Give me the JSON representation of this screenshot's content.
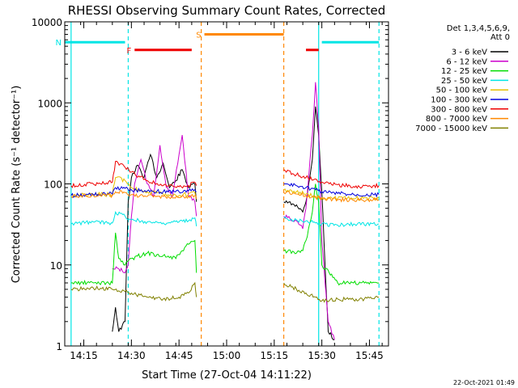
{
  "chart_data": {
    "type": "line",
    "title": "RHESSI Observing Summary Count Rates, Corrected",
    "xlabel": "Start Time (27-Oct-04 14:11:22)",
    "ylabel": "Corrected Count Rate (s⁻¹ detector⁻¹)",
    "ylog": true,
    "ylim": [
      1,
      10000
    ],
    "xlim": [
      "14:09",
      "15:51"
    ],
    "x_ticks": [
      "14:15",
      "14:30",
      "14:45",
      "15:00",
      "15:15",
      "15:30",
      "15:45"
    ],
    "y_ticks": [
      "1",
      "10",
      "100",
      "1000",
      "10000"
    ],
    "legend": {
      "placement": "right",
      "header": [
        "Det 1,3,4,5,6,9,",
        "Att 0"
      ],
      "entries": [
        {
          "label": "3 - 6 keV",
          "color": "#000000"
        },
        {
          "label": "6 - 12 keV",
          "color": "#cc00cc"
        },
        {
          "label": "12 - 25 keV",
          "color": "#00dd00"
        },
        {
          "label": "25 - 50 keV",
          "color": "#00e5e5"
        },
        {
          "label": "50 - 100 keV",
          "color": "#e6c000"
        },
        {
          "label": "100 - 300 keV",
          "color": "#0000dd"
        },
        {
          "label": "300 - 800 keV",
          "color": "#ee0000"
        },
        {
          "label": "800 - 7000 keV",
          "color": "#ff8800"
        },
        {
          "label": "7000 - 15000 keV",
          "color": "#808000"
        }
      ]
    },
    "markers": [
      {
        "label": "N",
        "color": "#00e5e5",
        "bar": [
          "14:09",
          "14:28"
        ],
        "bar_y": 5600,
        "bar2": [
          "15:30",
          "15:48"
        ],
        "lines": [
          "14:11",
          "14:29",
          "15:29",
          "15:48"
        ]
      },
      {
        "label": "F",
        "color": "#ee0000",
        "bar": [
          "14:31",
          "14:49"
        ],
        "bar_y": 4500,
        "bar2": [
          "15:25",
          "15:29"
        ]
      },
      {
        "label": "S",
        "color": "#ff8800",
        "bar": [
          "14:53",
          "15:18"
        ],
        "bar_y": 7000,
        "lines": [
          "14:52",
          "15:18"
        ]
      }
    ],
    "series": [
      {
        "name": "3 - 6 keV",
        "color": "#000000",
        "points": [
          [
            "14:24",
            1.5
          ],
          [
            "14:25",
            3
          ],
          [
            "14:26",
            1.5
          ],
          [
            "14:28",
            2
          ],
          [
            "14:29",
            60
          ],
          [
            "14:30",
            120
          ],
          [
            "14:32",
            170
          ],
          [
            "14:34",
            120
          ],
          [
            "14:36",
            230
          ],
          [
            "14:38",
            120
          ],
          [
            "14:40",
            180
          ],
          [
            "14:42",
            90
          ],
          [
            "14:44",
            110
          ],
          [
            "14:46",
            150
          ],
          [
            "14:48",
            90
          ],
          [
            "14:50",
            100
          ],
          [
            "14:50.5",
            60
          ],
          [
            "15:18",
            60
          ],
          [
            "15:22",
            55
          ],
          [
            "15:24",
            45
          ],
          [
            "15:25",
            60
          ],
          [
            "15:27",
            200
          ],
          [
            "15:28",
            900
          ],
          [
            "15:29",
            400
          ],
          [
            "15:30",
            80
          ],
          [
            "15:31",
            10
          ],
          [
            "15:32",
            1.5
          ],
          [
            "15:34",
            1.2
          ]
        ]
      },
      {
        "name": "6 - 12 keV",
        "color": "#cc00cc",
        "points": [
          [
            "14:24",
            9
          ],
          [
            "14:26",
            9
          ],
          [
            "14:28",
            8
          ],
          [
            "14:29",
            10
          ],
          [
            "14:30",
            40
          ],
          [
            "14:31",
            100
          ],
          [
            "14:33",
            200
          ],
          [
            "14:35",
            100
          ],
          [
            "14:37",
            70
          ],
          [
            "14:39",
            300
          ],
          [
            "14:41",
            90
          ],
          [
            "14:43",
            70
          ],
          [
            "14:45",
            230
          ],
          [
            "14:46",
            400
          ],
          [
            "14:48",
            70
          ],
          [
            "14:50",
            60
          ],
          [
            "14:50.5",
            40
          ],
          [
            "15:18",
            40
          ],
          [
            "15:22",
            35
          ],
          [
            "15:24",
            28
          ],
          [
            "15:25",
            50
          ],
          [
            "15:27",
            400
          ],
          [
            "15:28",
            1800
          ],
          [
            "15:29",
            500
          ],
          [
            "15:30",
            20
          ],
          [
            "15:31",
            6
          ],
          [
            "15:32",
            2
          ],
          [
            "15:34",
            1.2
          ]
        ]
      },
      {
        "name": "12 - 25 keV",
        "color": "#00dd00",
        "points": [
          [
            "14:11",
            6
          ],
          [
            "14:18",
            6
          ],
          [
            "14:24",
            6
          ],
          [
            "14:25",
            25
          ],
          [
            "14:26",
            12
          ],
          [
            "14:28",
            10
          ],
          [
            "14:30",
            12
          ],
          [
            "14:35",
            14
          ],
          [
            "14:40",
            13
          ],
          [
            "14:44",
            12
          ],
          [
            "14:46",
            15
          ],
          [
            "14:48",
            18
          ],
          [
            "14:50",
            20
          ],
          [
            "14:50.5",
            8
          ],
          [
            "15:18",
            15
          ],
          [
            "15:22",
            14
          ],
          [
            "15:24",
            15
          ],
          [
            "15:25",
            20
          ],
          [
            "15:27",
            45
          ],
          [
            "15:28",
            100
          ],
          [
            "15:29",
            60
          ],
          [
            "15:30",
            10
          ],
          [
            "15:35",
            6
          ],
          [
            "15:40",
            6
          ],
          [
            "15:48",
            6
          ]
        ]
      },
      {
        "name": "25 - 50 keV",
        "color": "#00e5e5",
        "points": [
          [
            "14:11",
            32
          ],
          [
            "14:18",
            34
          ],
          [
            "14:24",
            33
          ],
          [
            "14:25",
            45
          ],
          [
            "14:28",
            40
          ],
          [
            "14:30",
            36
          ],
          [
            "14:35",
            34
          ],
          [
            "14:40",
            33
          ],
          [
            "14:45",
            34
          ],
          [
            "14:48",
            35
          ],
          [
            "14:50",
            38
          ],
          [
            "14:50.5",
            30
          ],
          [
            "15:18",
            38
          ],
          [
            "15:22",
            36
          ],
          [
            "15:25",
            35
          ],
          [
            "15:28",
            33
          ],
          [
            "15:30",
            32
          ],
          [
            "15:35",
            31
          ],
          [
            "15:40",
            32
          ],
          [
            "15:48",
            32
          ]
        ]
      },
      {
        "name": "50 - 100 keV",
        "color": "#e6c000",
        "points": [
          [
            "14:11",
            72
          ],
          [
            "14:18",
            74
          ],
          [
            "14:24",
            74
          ],
          [
            "14:25",
            120
          ],
          [
            "14:28",
            110
          ],
          [
            "14:30",
            90
          ],
          [
            "14:35",
            80
          ],
          [
            "14:40",
            75
          ],
          [
            "14:45",
            72
          ],
          [
            "14:48",
            75
          ],
          [
            "14:50",
            78
          ],
          [
            "14:50.5",
            70
          ],
          [
            "15:18",
            85
          ],
          [
            "15:22",
            80
          ],
          [
            "15:25",
            75
          ],
          [
            "15:28",
            70
          ],
          [
            "15:30",
            68
          ],
          [
            "15:35",
            66
          ],
          [
            "15:40",
            66
          ],
          [
            "15:48",
            67
          ]
        ]
      },
      {
        "name": "100 - 300 keV",
        "color": "#0000dd",
        "points": [
          [
            "14:11",
            72
          ],
          [
            "14:18",
            74
          ],
          [
            "14:24",
            75
          ],
          [
            "14:25",
            90
          ],
          [
            "14:28",
            88
          ],
          [
            "14:30",
            85
          ],
          [
            "14:35",
            82
          ],
          [
            "14:40",
            80
          ],
          [
            "14:45",
            80
          ],
          [
            "14:48",
            82
          ],
          [
            "14:50",
            85
          ],
          [
            "14:50.5",
            80
          ],
          [
            "15:18",
            100
          ],
          [
            "15:22",
            95
          ],
          [
            "15:25",
            90
          ],
          [
            "15:28",
            85
          ],
          [
            "15:30",
            80
          ],
          [
            "15:35",
            76
          ],
          [
            "15:40",
            74
          ],
          [
            "15:48",
            74
          ]
        ]
      },
      {
        "name": "300 - 800 keV",
        "color": "#ee0000",
        "points": [
          [
            "14:11",
            95
          ],
          [
            "14:18",
            100
          ],
          [
            "14:24",
            105
          ],
          [
            "14:25",
            190
          ],
          [
            "14:28",
            160
          ],
          [
            "14:30",
            140
          ],
          [
            "14:35",
            110
          ],
          [
            "14:40",
            95
          ],
          [
            "14:45",
            92
          ],
          [
            "14:48",
            95
          ],
          [
            "14:50",
            105
          ],
          [
            "14:50.5",
            95
          ],
          [
            "15:18",
            150
          ],
          [
            "15:22",
            130
          ],
          [
            "15:25",
            120
          ],
          [
            "15:28",
            115
          ],
          [
            "15:30",
            105
          ],
          [
            "15:35",
            98
          ],
          [
            "15:40",
            93
          ],
          [
            "15:48",
            95
          ]
        ]
      },
      {
        "name": "800 - 7000 keV",
        "color": "#ff8800",
        "points": [
          [
            "14:11",
            70
          ],
          [
            "14:18",
            72
          ],
          [
            "14:24",
            72
          ],
          [
            "14:25",
            80
          ],
          [
            "14:28",
            78
          ],
          [
            "14:30",
            74
          ],
          [
            "14:35",
            70
          ],
          [
            "14:40",
            70
          ],
          [
            "14:45",
            68
          ],
          [
            "14:48",
            70
          ],
          [
            "14:50",
            72
          ],
          [
            "14:50.5",
            65
          ],
          [
            "15:18",
            78
          ],
          [
            "15:22",
            75
          ],
          [
            "15:25",
            72
          ],
          [
            "15:28",
            68
          ],
          [
            "15:30",
            66
          ],
          [
            "15:35",
            64
          ],
          [
            "15:40",
            63
          ],
          [
            "15:48",
            64
          ]
        ]
      },
      {
        "name": "7000 - 15000 keV",
        "color": "#808000",
        "points": [
          [
            "14:11",
            5
          ],
          [
            "14:18",
            5.2
          ],
          [
            "14:24",
            5
          ],
          [
            "14:26",
            4.8
          ],
          [
            "14:30",
            4.5
          ],
          [
            "14:35",
            4
          ],
          [
            "14:40",
            3.8
          ],
          [
            "14:45",
            4
          ],
          [
            "14:48",
            4.5
          ],
          [
            "14:50",
            6
          ],
          [
            "14:50.5",
            4
          ],
          [
            "15:18",
            6
          ],
          [
            "15:22",
            5
          ],
          [
            "15:25",
            4.5
          ],
          [
            "15:28",
            4
          ],
          [
            "15:30",
            3.6
          ],
          [
            "15:35",
            3.8
          ],
          [
            "15:40",
            3.7
          ],
          [
            "15:48",
            4
          ]
        ]
      }
    ],
    "footer_date": "22-Oct-2021 01:49"
  }
}
